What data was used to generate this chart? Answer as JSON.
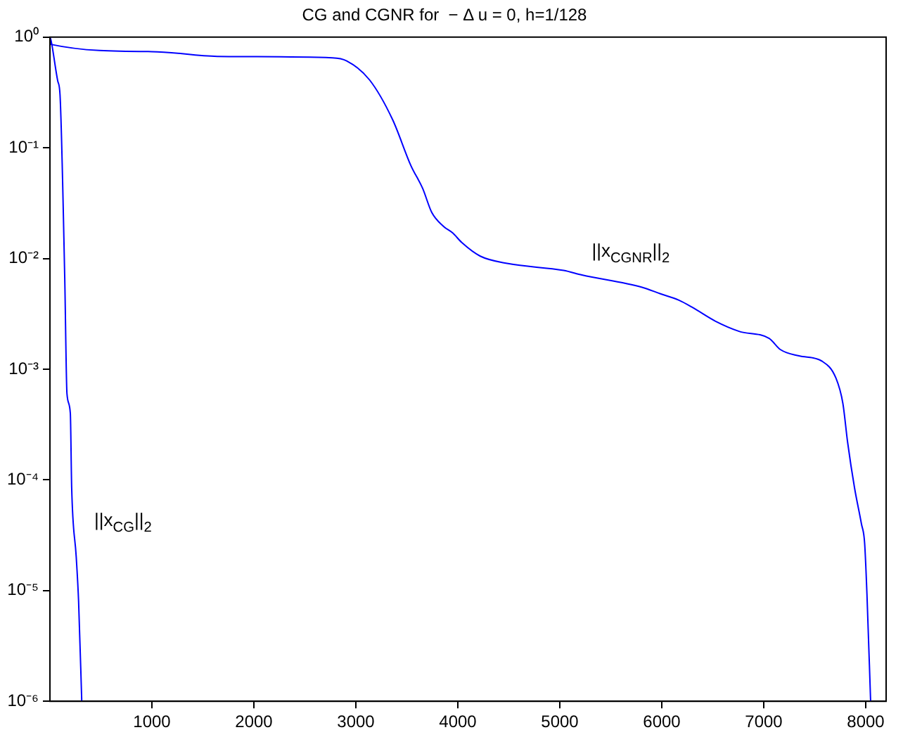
{
  "chart_data": {
    "type": "line",
    "title": "CG and CGNR for  − Δ u = 0, h=1/128",
    "log": "y",
    "grid": false,
    "legend": false,
    "marker": "none",
    "line_style": "solid",
    "xlim": [
      0,
      8200
    ],
    "xticks": [
      1000,
      2000,
      3000,
      4000,
      5000,
      6000,
      7000,
      8000
    ],
    "ylim": [
      1e-06,
      1
    ],
    "yticks": [
      {
        "value": 1,
        "label": "10⁰"
      },
      {
        "value": 0.1,
        "label": "10⁻¹"
      },
      {
        "value": 0.01,
        "label": "10⁻²"
      },
      {
        "value": 0.001,
        "label": "10⁻³"
      },
      {
        "value": 0.0001,
        "label": "10⁻⁴"
      },
      {
        "value": 1e-05,
        "label": "10⁻⁵"
      },
      {
        "value": 1e-06,
        "label": "10⁻⁶"
      }
    ],
    "series": [
      {
        "color": "#0000ff",
        "x": [
          0,
          10,
          77,
          99,
          145,
          167,
          200,
          213,
          258,
          281,
          312
        ],
        "values": [
          1,
          0.94,
          0.4,
          0.3,
          0.0068,
          0.0006,
          0.0004,
          8.6e-05,
          2e-05,
          8e-06,
          1e-06
        ]
      },
      {
        "color": "#0000ff",
        "x": [
          0,
          10,
          1000,
          1640,
          2770,
          2910,
          3135,
          3360,
          3540,
          3655,
          3745,
          3860,
          3950,
          4040,
          4220,
          4493,
          5037,
          5217,
          5806,
          5987,
          6168,
          6304,
          6531,
          6757,
          7052,
          7165,
          7346,
          7572,
          7708,
          7776,
          7822,
          7890,
          7958,
          7989,
          8012,
          8048
        ],
        "values": [
          1,
          0.86,
          0.74,
          0.67,
          0.65,
          0.61,
          0.41,
          0.18,
          0.069,
          0.043,
          0.026,
          0.0195,
          0.017,
          0.0139,
          0.0105,
          0.009,
          0.0078,
          0.0071,
          0.0055,
          0.0048,
          0.0042,
          0.0036,
          0.0027,
          0.0022,
          0.0019,
          0.0015,
          0.00132,
          0.00118,
          0.00083,
          0.00049,
          0.00022,
          8.5e-05,
          4e-05,
          2.7e-05,
          9.3e-06,
          1e-06
        ]
      }
    ],
    "annotations": [
      "||x$_{CGNR}$||$_{2}$",
      "||x$_{CG}$||$_{2}$"
    ]
  }
}
